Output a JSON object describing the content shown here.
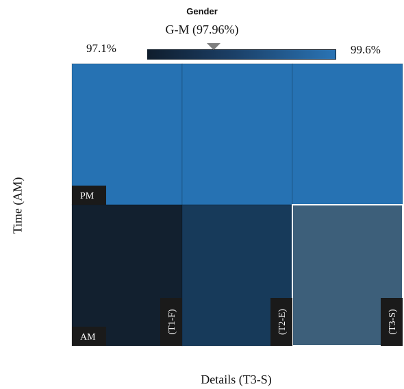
{
  "legend": {
    "title": "Gender",
    "selected": "G-M (97.96%)",
    "min_label": "97.1%",
    "max_label": "99.6%",
    "min_value": 97.1,
    "max_value": 99.6,
    "marker_value": 97.96,
    "gradient_colors": [
      "#0f1d2d",
      "#1b3f66",
      "#2a74b5"
    ]
  },
  "axes": {
    "ylabel": "Time (AM)",
    "xlabel": "Details (T3-S)"
  },
  "chart_data": {
    "type": "heatmap",
    "columns": [
      "(T1-F)",
      "(T2-E)",
      "(T3-S)"
    ],
    "rows": [
      "PM",
      "AM"
    ],
    "colors": [
      [
        "#2672b3",
        "#2672b3",
        "#2672b3"
      ],
      [
        "#12202f",
        "#173a5a",
        "#3d5f7a"
      ]
    ],
    "highlighted_cell": {
      "row": "AM",
      "column": "(T3-S)"
    },
    "colorscale_range": [
      97.1,
      99.6
    ]
  }
}
